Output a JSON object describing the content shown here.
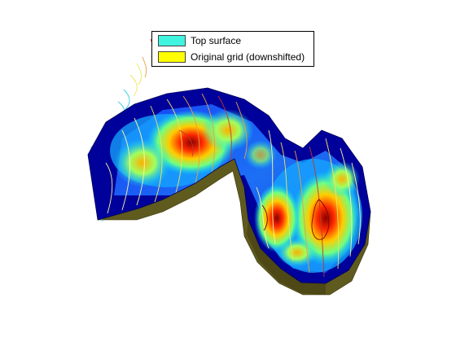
{
  "legend": {
    "entries": [
      {
        "label": "Top surface",
        "color": "#3ff5e0"
      },
      {
        "label": "Original grid (downshifted)",
        "color": "#ffff00"
      }
    ]
  },
  "colors": {
    "background": "#ffffff",
    "colormap": [
      "#00008f",
      "#0050ff",
      "#00dfff",
      "#7fff7f",
      "#ffd000",
      "#ff3000",
      "#800000"
    ],
    "side_wall": "#5f5a1e",
    "contour_lines": [
      "#fffaa0",
      "#f3e35a",
      "#e4a13c",
      "#c0392b",
      "#2ec8e6"
    ]
  }
}
